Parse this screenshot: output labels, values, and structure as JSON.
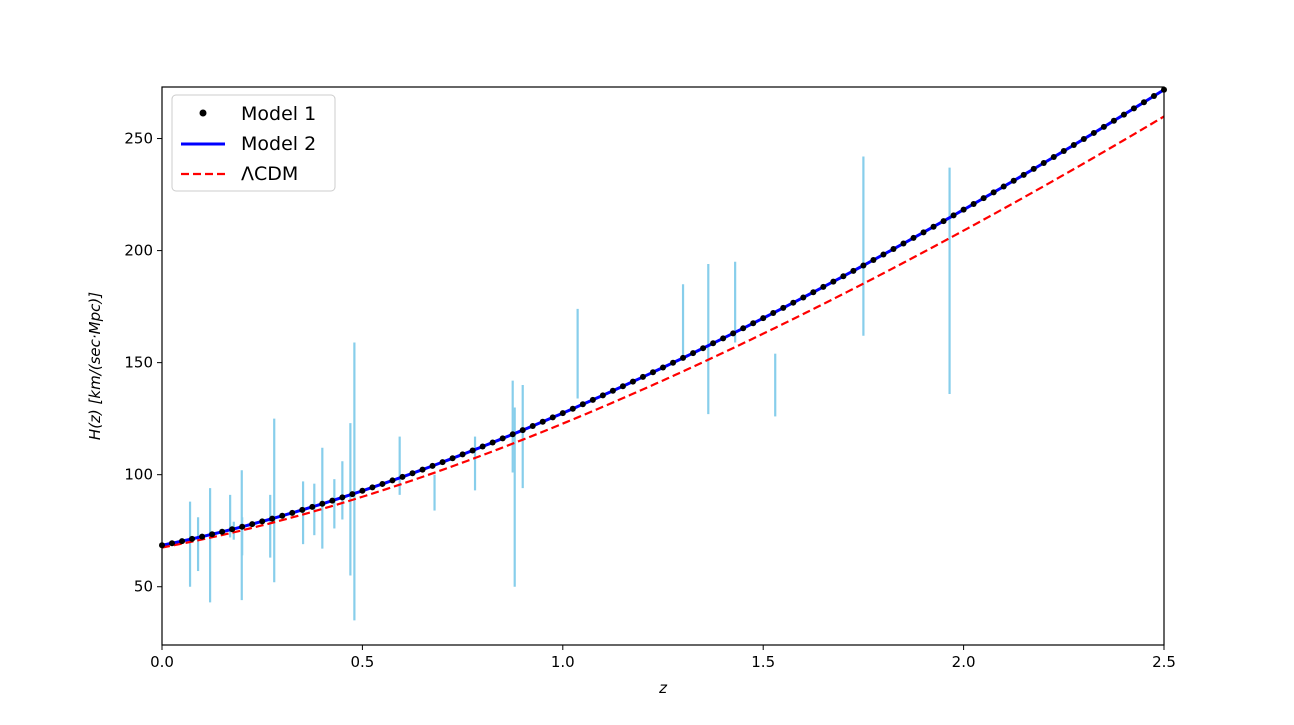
{
  "chart_data": {
    "type": "line",
    "xlabel": "z",
    "ylabel": "H(z)  [km/(sec·Mpc)]",
    "xlim": [
      0.0,
      2.5
    ],
    "ylim": [
      24,
      273
    ],
    "xticks": [
      "0.0",
      "0.5",
      "1.0",
      "1.5",
      "2.0",
      "2.5"
    ],
    "yticks": [
      "50",
      "100",
      "150",
      "200",
      "250"
    ],
    "grid": false,
    "legend_position": "top-left",
    "series": [
      {
        "name": "Model 1",
        "style": "dots",
        "color": "#000000",
        "function": "H0*sqrt(Om*(1+z)^3 + 1 - Om)",
        "params": {
          "H0": 68.5,
          "Om": 0.352
        },
        "sample_step": 0.025
      },
      {
        "name": "Model 2",
        "style": "solid",
        "color": "#0000ff",
        "function": "H0*sqrt(Om*(1+z)^3 + 1 - Om)",
        "params": {
          "H0": 68.5,
          "Om": 0.352
        }
      },
      {
        "name": "ΛCDM",
        "style": "dashed",
        "color": "#ff0000",
        "function": "H0*sqrt(Om*(1+z)^3 + 1 - Om)",
        "params": {
          "H0": 67.5,
          "Om": 0.33
        }
      }
    ],
    "observations": {
      "color": "#87ceeb",
      "points": [
        {
          "z": 0.07,
          "lo": 50,
          "hi": 88
        },
        {
          "z": 0.09,
          "lo": 57,
          "hi": 81
        },
        {
          "z": 0.12,
          "lo": 43,
          "hi": 94
        },
        {
          "z": 0.17,
          "lo": 72,
          "hi": 91
        },
        {
          "z": 0.179,
          "lo": 71,
          "hi": 79
        },
        {
          "z": 0.199,
          "lo": 44,
          "hi": 102
        },
        {
          "z": 0.2,
          "lo": 64,
          "hi": 81
        },
        {
          "z": 0.27,
          "lo": 63,
          "hi": 91
        },
        {
          "z": 0.28,
          "lo": 52,
          "hi": 125
        },
        {
          "z": 0.352,
          "lo": 69,
          "hi": 97
        },
        {
          "z": 0.38,
          "lo": 73,
          "hi": 96
        },
        {
          "z": 0.4,
          "lo": 67,
          "hi": 112
        },
        {
          "z": 0.43,
          "lo": 76,
          "hi": 98
        },
        {
          "z": 0.45,
          "lo": 80,
          "hi": 106
        },
        {
          "z": 0.47,
          "lo": 55,
          "hi": 123
        },
        {
          "z": 0.48,
          "lo": 35,
          "hi": 159
        },
        {
          "z": 0.593,
          "lo": 91,
          "hi": 117
        },
        {
          "z": 0.68,
          "lo": 84,
          "hi": 100
        },
        {
          "z": 0.781,
          "lo": 93,
          "hi": 117
        },
        {
          "z": 0.875,
          "lo": 101,
          "hi": 142
        },
        {
          "z": 0.88,
          "lo": 50,
          "hi": 130
        },
        {
          "z": 0.9,
          "lo": 94,
          "hi": 140
        },
        {
          "z": 1.037,
          "lo": 134,
          "hi": 174
        },
        {
          "z": 1.3,
          "lo": 151,
          "hi": 185
        },
        {
          "z": 1.363,
          "lo": 127,
          "hi": 194
        },
        {
          "z": 1.43,
          "lo": 159,
          "hi": 195
        },
        {
          "z": 1.53,
          "lo": 126,
          "hi": 154
        },
        {
          "z": 1.75,
          "lo": 162,
          "hi": 242
        },
        {
          "z": 1.965,
          "lo": 136,
          "hi": 237
        }
      ]
    }
  },
  "colors": {
    "axes": "#000000",
    "background": "#ffffff",
    "legend_border": "#cccccc"
  },
  "legend": {
    "items": [
      "Model 1",
      "Model 2",
      "ΛCDM"
    ]
  }
}
